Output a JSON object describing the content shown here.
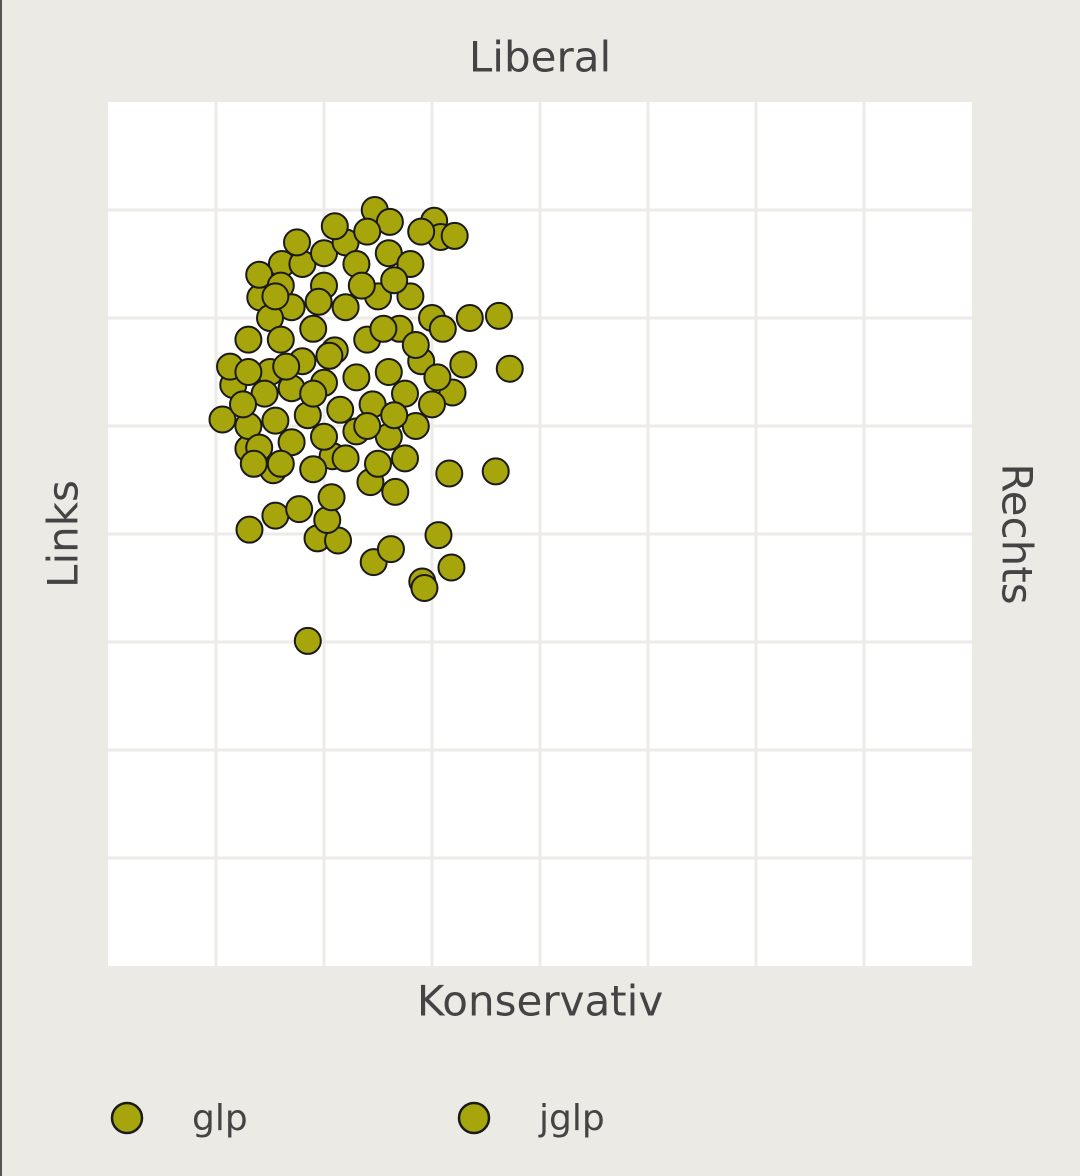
{
  "chart_data": {
    "type": "scatter",
    "top_label": "Liberal",
    "bottom_label": "Konservativ",
    "left_label": "Links",
    "right_label": "Rechts",
    "xlim": [
      0,
      8
    ],
    "ylim": [
      0,
      8
    ],
    "xticks": [
      1,
      2,
      3,
      4,
      5,
      6,
      7
    ],
    "yticks": [
      1,
      2,
      3,
      4,
      5,
      6,
      7
    ],
    "grid": true,
    "series": [
      {
        "name": "glp",
        "color": "#a6a60c",
        "x": [
          1.85,
          2.91,
          2.93,
          3.18,
          2.46,
          2.62,
          3.06,
          1.31,
          1.55,
          1.77,
          1.94,
          2.13,
          2.03,
          3.59,
          3.16,
          3.72,
          3.62,
          3.35,
          3.29,
          3.19,
          3.02,
          2.47,
          3.08,
          3.21,
          2.61,
          1.61,
          1.41,
          1.06,
          1.16,
          1.13,
          1.3,
          1.53,
          2.66,
          2.43,
          2.07,
          2.08,
          1.4,
          1.6,
          1.8,
          2.0,
          2.2,
          2.4,
          2.6,
          2.8,
          2.3,
          2.0,
          1.7,
          1.5,
          1.3,
          1.6,
          1.9,
          2.2,
          2.5,
          2.8,
          3.0,
          2.7,
          2.4,
          2.1,
          1.8,
          1.5,
          1.3
        ],
        "y": [
          3.01,
          3.56,
          3.5,
          3.69,
          3.74,
          3.86,
          3.99,
          4.04,
          4.17,
          4.23,
          3.96,
          3.94,
          4.13,
          4.58,
          4.56,
          5.53,
          6.02,
          6.0,
          5.57,
          5.31,
          6.9,
          7.0,
          6.75,
          6.76,
          6.89,
          6.5,
          6.19,
          5.06,
          5.38,
          5.55,
          4.79,
          4.59,
          4.39,
          4.48,
          4.34,
          4.72,
          6.4,
          6.3,
          6.5,
          6.6,
          6.7,
          6.8,
          6.6,
          6.5,
          6.5,
          6.3,
          6.1,
          6.0,
          5.8,
          5.8,
          5.9,
          6.1,
          6.2,
          6.2,
          6.0,
          5.9,
          5.8,
          5.7,
          5.6,
          5.5,
          5.5
        ]
      },
      {
        "name": "jglp",
        "color": "#a6a60c",
        "x": [
          1.45,
          1.7,
          2.0,
          2.3,
          2.6,
          2.9,
          3.1,
          2.75,
          2.45,
          2.15,
          1.85,
          1.55,
          1.3,
          1.4,
          1.7,
          2.0,
          2.3,
          2.6,
          2.85,
          3.0,
          2.75,
          2.5,
          2.2,
          1.9,
          1.6,
          1.35,
          2.35,
          1.95,
          1.55,
          2.65,
          2.9,
          2.1,
          1.75,
          2.55,
          1.25,
          2.05,
          2.65,
          1.9,
          2.4,
          1.65,
          2.85,
          3.05
        ],
        "y": [
          5.3,
          5.35,
          5.4,
          5.45,
          5.5,
          5.6,
          5.9,
          5.3,
          5.2,
          5.15,
          5.1,
          5.05,
          5.0,
          4.8,
          4.85,
          4.9,
          4.95,
          4.9,
          5.0,
          5.2,
          4.7,
          4.65,
          4.7,
          4.6,
          4.65,
          4.65,
          6.3,
          6.15,
          6.2,
          6.35,
          6.8,
          6.85,
          6.7,
          5.9,
          5.2,
          5.65,
          5.1,
          5.3,
          5.0,
          5.55,
          5.75,
          5.45
        ]
      }
    ]
  }
}
